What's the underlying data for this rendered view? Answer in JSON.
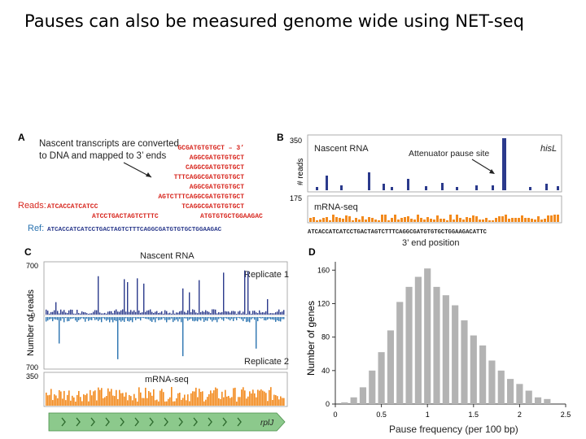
{
  "slide": {
    "title": "Pauses can also be measured genome wide using NET-seq"
  },
  "colors": {
    "red": "#d7261e",
    "navy": "#2b3a8c",
    "steel_blue": "#2a73b0",
    "orange": "#f28a1e",
    "gray_bar": "#b3b3b3",
    "green_arrow": "#8cc98c"
  },
  "panel_a": {
    "letter": "A",
    "caption_line1": "Nascent transcripts are converted",
    "caption_line2": "to DNA and mapped to 3’ ends",
    "reads_lines": [
      "GCGATGTGTGCT – 3’",
      "AGGCGATGTGTGCT",
      "CAGGCGATGTGTGCT",
      "TTTCAGGCGATGTGTGCT",
      "AGGCGATGTGTGCT",
      "AGTCTTTCAGGCGATGTGTGCT",
      "TCAGGCGATGTGTGCT"
    ],
    "reads_label": "Reads:",
    "reads_row_left": "ATCACCATCATCC",
    "reads_row_mid": "ATCCTGACTAGTCTTTC",
    "reads_row_right": "ATGTGTGCTGGAAGAC",
    "ref_label": "Ref:",
    "ref_seq": "ATCACCATCATCCTGACTAGTCTTTCAGGCGATGTGTGCTGGAAGAC"
  },
  "panel_b": {
    "letter": "B",
    "ytick_top": "350",
    "ytick_bottom": "175",
    "ylabel": "# reads",
    "nascent_label": "Nascent RNA",
    "gene_label": "hisL",
    "annotation": "Attenuator pause site",
    "mrna_label": "mRNA-seq",
    "seq": "ATCACCATCATCCTGACTAGTCTTTCAGGCGATGTGTGCTGGAAGACATTC",
    "xlabel": "3’ end position"
  },
  "panel_c": {
    "letter": "C",
    "title": "Nascent RNA",
    "ytick_700_top": "700",
    "ytick_0": "0",
    "ytick_700_bottom": "700",
    "ytick_350": "350",
    "ylabel": "Number of reads",
    "replicate1": "Replicate 1",
    "replicate2": "Replicate 2",
    "mrna_label": "mRNA-seq",
    "gene_label": "rplJ"
  },
  "panel_d": {
    "letter": "D"
  },
  "chart_data": {
    "type": "bar",
    "xlabel": "Pause frequency (per 100 bp)",
    "ylabel": "Number of genes",
    "x_ticks": [
      "0",
      "0.5",
      "1",
      "1.5",
      "2",
      "2.5"
    ],
    "y_ticks": [
      "0",
      "40",
      "80",
      "120",
      "160"
    ],
    "xlim": [
      0,
      2.5
    ],
    "ylim": [
      0,
      170
    ],
    "bin_width": 0.1,
    "x": [
      0.1,
      0.2,
      0.3,
      0.4,
      0.5,
      0.6,
      0.7,
      0.8,
      0.9,
      1.0,
      1.1,
      1.2,
      1.3,
      1.4,
      1.5,
      1.6,
      1.7,
      1.8,
      1.9,
      2.0,
      2.1,
      2.2,
      2.3
    ],
    "values": [
      2,
      8,
      20,
      40,
      62,
      88,
      122,
      140,
      152,
      162,
      140,
      130,
      118,
      100,
      82,
      70,
      52,
      40,
      30,
      24,
      16,
      8,
      6
    ]
  }
}
